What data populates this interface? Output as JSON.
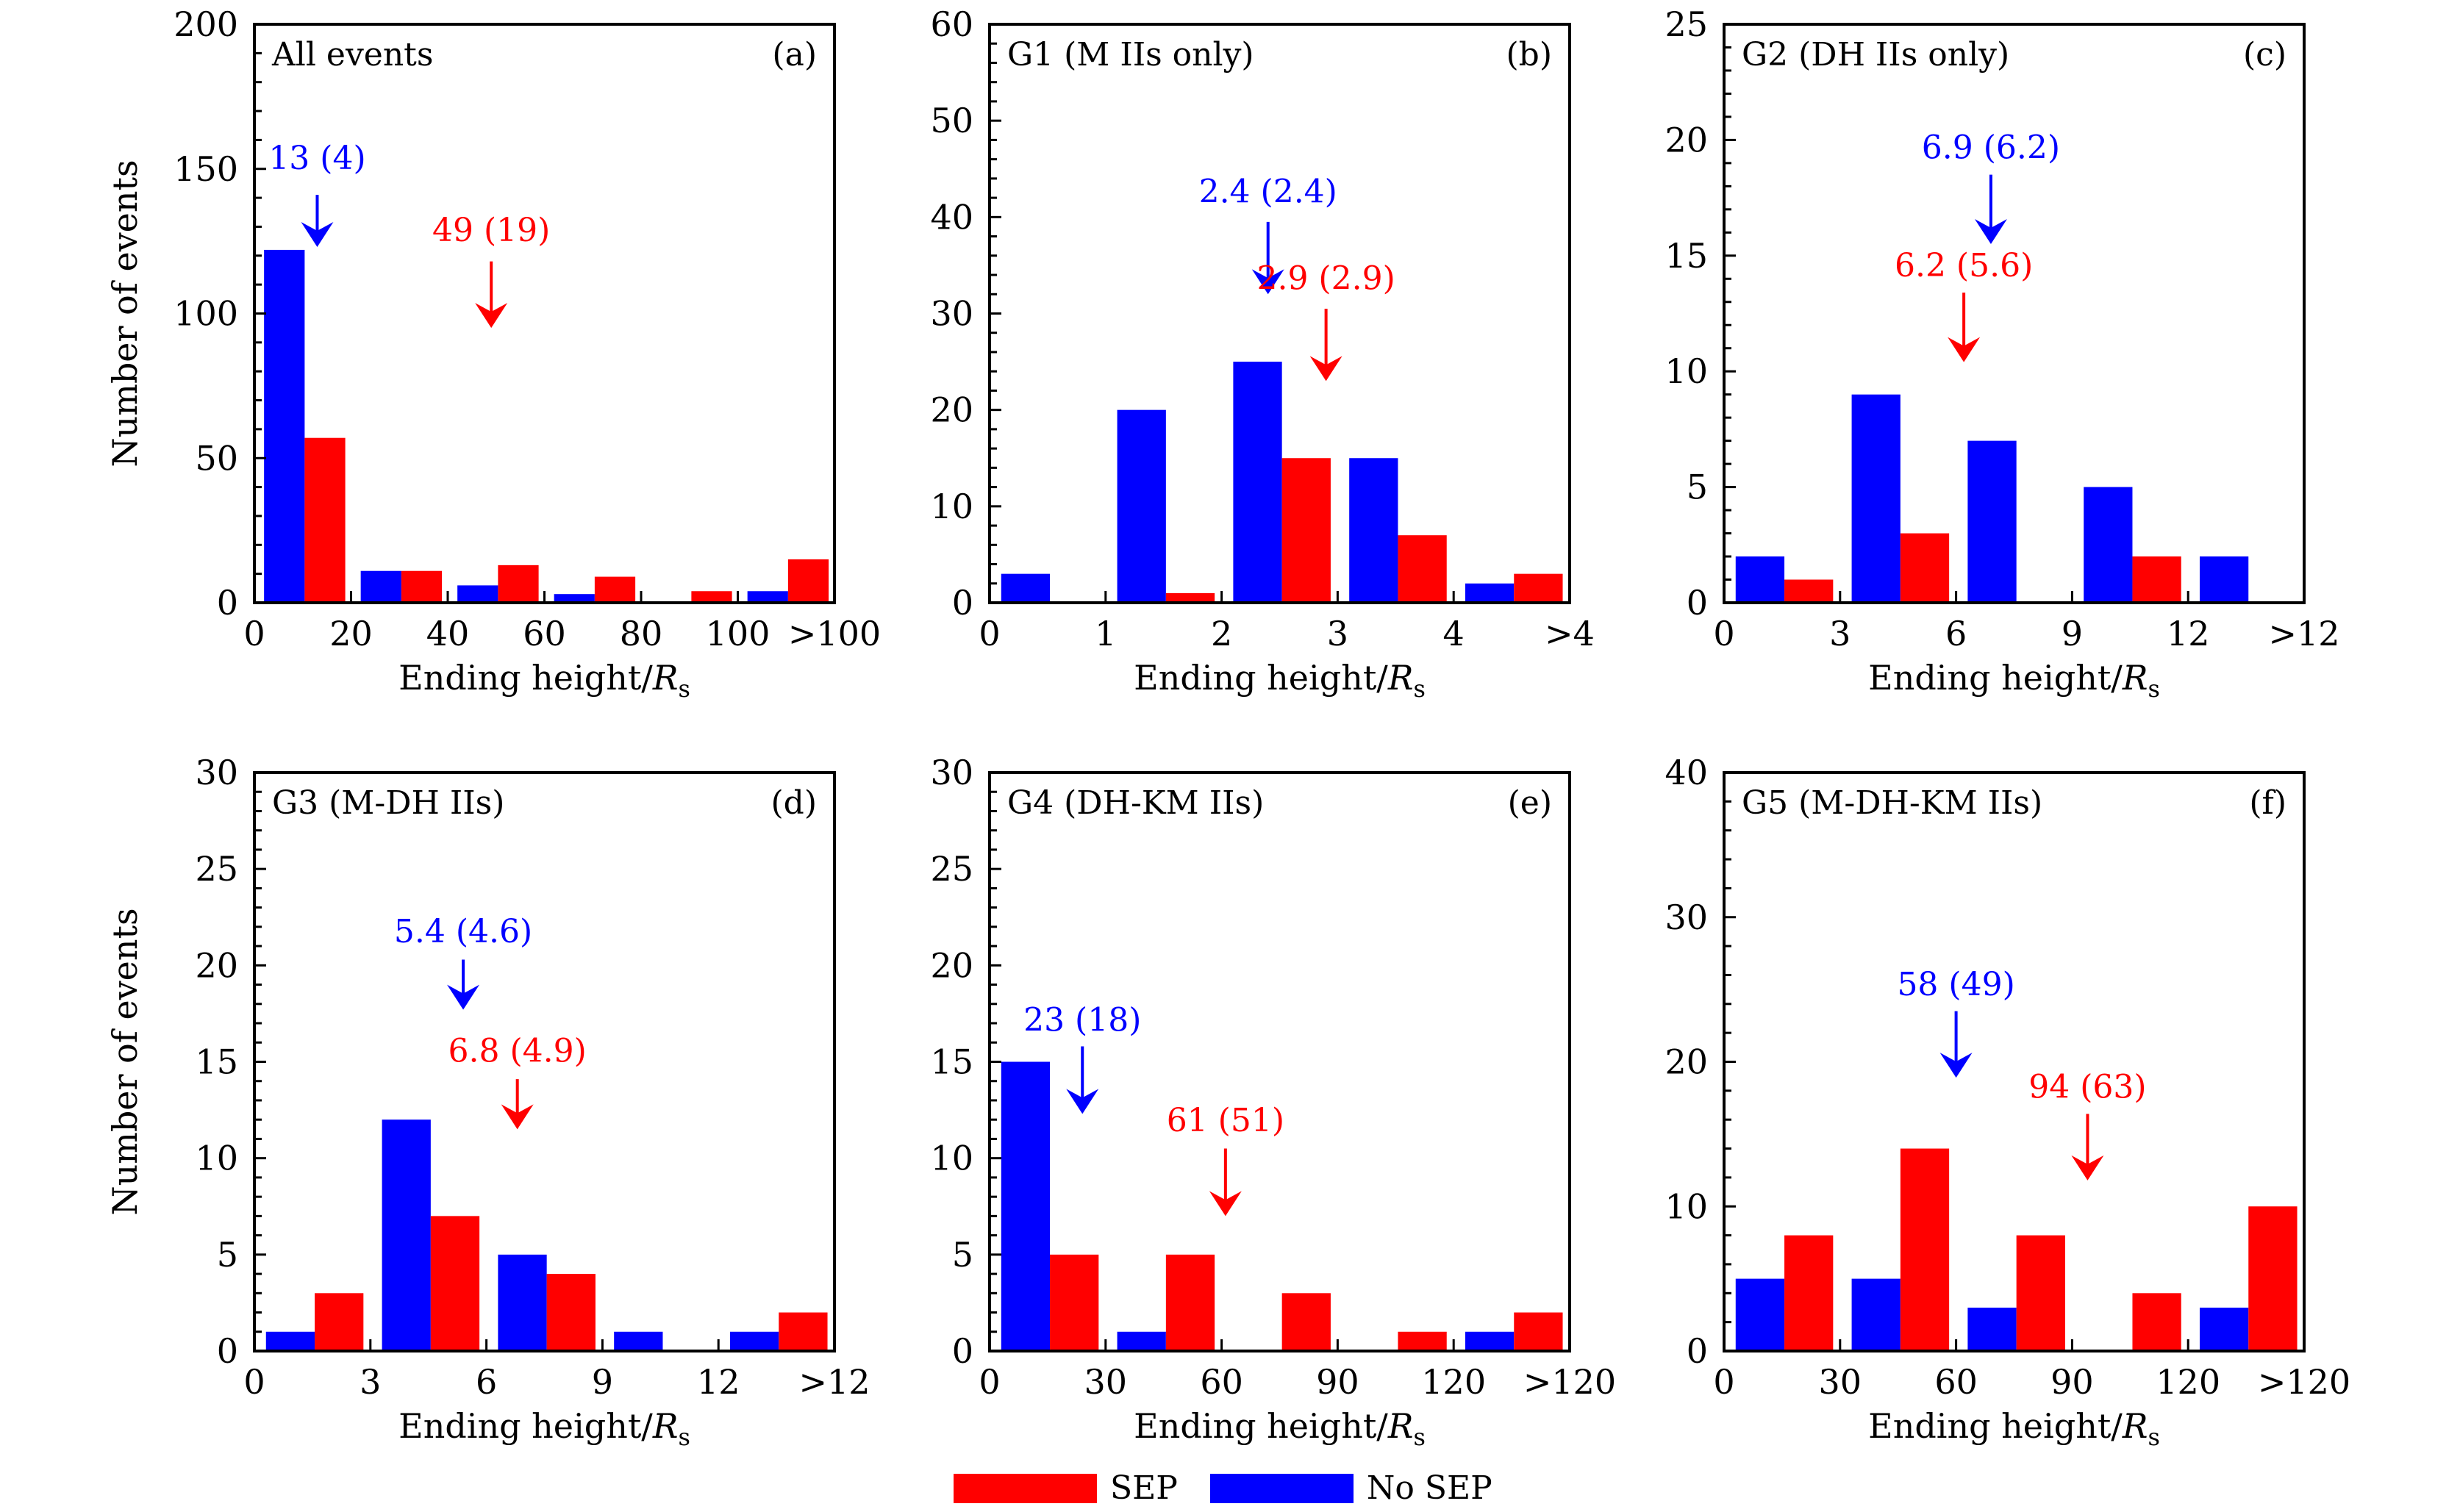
{
  "colors": {
    "sep": "#ff0000",
    "no_sep": "#0000ff",
    "axis": "#000000"
  },
  "legend": [
    {
      "label": "SEP",
      "color_key": "sep"
    },
    {
      "label": "No SEP",
      "color_key": "no_sep"
    }
  ],
  "chart_data": [
    {
      "type": "bar",
      "panel": "(a)",
      "title": "All events",
      "xlabel": "Ending height/Rs",
      "ylabel": "Number of events",
      "xlim": [
        0,
        120
      ],
      "ylim": [
        0,
        200
      ],
      "xticks": [
        0,
        20,
        40,
        60,
        80,
        100,
        120
      ],
      "xtick_labels": [
        "0",
        "20",
        "40",
        "60",
        "80",
        "100",
        ">100"
      ],
      "yticks": [
        0,
        50,
        100,
        150,
        200
      ],
      "yminor_step": 10,
      "bin_edges": [
        0,
        20,
        40,
        60,
        80,
        100,
        120
      ],
      "series": [
        {
          "name": "No SEP",
          "color_key": "no_sep",
          "values": [
            122,
            11,
            6,
            3,
            0,
            4
          ]
        },
        {
          "name": "SEP",
          "color_key": "sep",
          "values": [
            57,
            11,
            13,
            9,
            4,
            15
          ]
        }
      ],
      "annotations": [
        {
          "text": "13 (4)",
          "color_key": "no_sep",
          "x": 13,
          "tip_y": 123,
          "top_y": 141,
          "label_y": 150
        },
        {
          "text": "49 (19)",
          "color_key": "sep",
          "x": 49,
          "tip_y": 95,
          "top_y": 118,
          "label_y": 125
        }
      ],
      "show_ylabel": true
    },
    {
      "type": "bar",
      "panel": "(b)",
      "title": "G1 (M IIs only)",
      "xlabel": "Ending height/Rs",
      "ylabel": "",
      "xlim": [
        0,
        5
      ],
      "ylim": [
        0,
        60
      ],
      "xticks": [
        0,
        1,
        2,
        3,
        4,
        5
      ],
      "xtick_labels": [
        "0",
        "1",
        "2",
        "3",
        "4",
        ">4"
      ],
      "yticks": [
        0,
        10,
        20,
        30,
        40,
        50,
        60
      ],
      "yminor_step": 2,
      "bin_edges": [
        0,
        1,
        2,
        3,
        4,
        5
      ],
      "series": [
        {
          "name": "No SEP",
          "color_key": "no_sep",
          "values": [
            3,
            20,
            25,
            15,
            2
          ]
        },
        {
          "name": "SEP",
          "color_key": "sep",
          "values": [
            0,
            1,
            15,
            7,
            3
          ]
        }
      ],
      "annotations": [
        {
          "text": "2.4 (2.4)",
          "color_key": "no_sep",
          "x": 2.4,
          "tip_y": 32,
          "top_y": 39.5,
          "label_y": 41.5
        },
        {
          "text": "2.9 (2.9)",
          "color_key": "sep",
          "x": 2.9,
          "tip_y": 23,
          "top_y": 30.5,
          "label_y": 32.5
        }
      ],
      "show_ylabel": false
    },
    {
      "type": "bar",
      "panel": "(c)",
      "title": "G2 (DH IIs only)",
      "xlabel": "Ending height/Rs",
      "ylabel": "",
      "xlim": [
        0,
        15
      ],
      "ylim": [
        0,
        25
      ],
      "xticks": [
        0,
        3,
        6,
        9,
        12,
        15
      ],
      "xtick_labels": [
        "0",
        "3",
        "6",
        "9",
        "12",
        ">12"
      ],
      "yticks": [
        0,
        5,
        10,
        15,
        20,
        25
      ],
      "yminor_step": 1,
      "bin_edges": [
        0,
        3,
        6,
        9,
        12,
        15
      ],
      "series": [
        {
          "name": "No SEP",
          "color_key": "no_sep",
          "values": [
            2,
            9,
            7,
            5,
            2
          ]
        },
        {
          "name": "SEP",
          "color_key": "sep",
          "values": [
            1,
            3,
            0,
            2,
            0
          ]
        }
      ],
      "annotations": [
        {
          "text": "6.9 (6.2)",
          "color_key": "no_sep",
          "x": 6.9,
          "tip_y": 15.5,
          "top_y": 18.5,
          "label_y": 19.2
        },
        {
          "text": "6.2 (5.6)",
          "color_key": "sep",
          "x": 6.2,
          "tip_y": 10.4,
          "top_y": 13.4,
          "label_y": 14.1
        }
      ],
      "show_ylabel": false
    },
    {
      "type": "bar",
      "panel": "(d)",
      "title": "G3 (M-DH IIs)",
      "xlabel": "Ending height/Rs",
      "ylabel": "Number of events",
      "xlim": [
        0,
        15
      ],
      "ylim": [
        0,
        30
      ],
      "xticks": [
        0,
        3,
        6,
        9,
        12,
        15
      ],
      "xtick_labels": [
        "0",
        "3",
        "6",
        "9",
        "12",
        ">12"
      ],
      "yticks": [
        0,
        5,
        10,
        15,
        20,
        25,
        30
      ],
      "yminor_step": 1,
      "bin_edges": [
        0,
        3,
        6,
        9,
        12,
        15
      ],
      "series": [
        {
          "name": "No SEP",
          "color_key": "no_sep",
          "values": [
            1,
            12,
            5,
            1,
            1
          ]
        },
        {
          "name": "SEP",
          "color_key": "sep",
          "values": [
            3,
            7,
            4,
            0,
            2
          ]
        }
      ],
      "annotations": [
        {
          "text": "5.4 (4.6)",
          "color_key": "no_sep",
          "x": 5.4,
          "tip_y": 17.7,
          "top_y": 20.3,
          "label_y": 21.2
        },
        {
          "text": "6.8 (4.9)",
          "color_key": "sep",
          "x": 6.8,
          "tip_y": 11.5,
          "top_y": 14.1,
          "label_y": 15.0
        }
      ],
      "show_ylabel": true
    },
    {
      "type": "bar",
      "panel": "(e)",
      "title": "G4 (DH-KM IIs)",
      "xlabel": "Ending height/Rs",
      "ylabel": "",
      "xlim": [
        0,
        150
      ],
      "ylim": [
        0,
        30
      ],
      "xticks": [
        0,
        30,
        60,
        90,
        120,
        150
      ],
      "xtick_labels": [
        "0",
        "30",
        "60",
        "90",
        "120",
        ">120"
      ],
      "yticks": [
        0,
        5,
        10,
        15,
        20,
        25,
        30
      ],
      "yminor_step": 1,
      "bin_edges": [
        0,
        30,
        60,
        90,
        120,
        150
      ],
      "series": [
        {
          "name": "No SEP",
          "color_key": "no_sep",
          "values": [
            15,
            1,
            0,
            0,
            1
          ]
        },
        {
          "name": "SEP",
          "color_key": "sep",
          "values": [
            5,
            5,
            3,
            1,
            2
          ]
        }
      ],
      "annotations": [
        {
          "text": "23 (18)",
          "color_key": "no_sep",
          "x": 24,
          "tip_y": 12.3,
          "top_y": 15.8,
          "label_y": 16.6
        },
        {
          "text": "61 (51)",
          "color_key": "sep",
          "x": 61,
          "tip_y": 7.0,
          "top_y": 10.5,
          "label_y": 11.4
        }
      ],
      "show_ylabel": false
    },
    {
      "type": "bar",
      "panel": "(f)",
      "title": "G5 (M-DH-KM IIs)",
      "xlabel": "Ending height/Rs",
      "ylabel": "",
      "xlim": [
        0,
        150
      ],
      "ylim": [
        0,
        40
      ],
      "xticks": [
        0,
        30,
        60,
        90,
        120,
        150
      ],
      "xtick_labels": [
        "0",
        "30",
        "60",
        "90",
        "120",
        ">120"
      ],
      "yticks": [
        0,
        10,
        20,
        30,
        40
      ],
      "yminor_step": 2,
      "bin_edges": [
        0,
        30,
        60,
        90,
        120,
        150
      ],
      "series": [
        {
          "name": "No SEP",
          "color_key": "no_sep",
          "values": [
            5,
            5,
            3,
            0,
            3
          ]
        },
        {
          "name": "SEP",
          "color_key": "sep",
          "values": [
            8,
            14,
            8,
            4,
            10
          ]
        }
      ],
      "annotations": [
        {
          "text": "58 (49)",
          "color_key": "no_sep",
          "x": 60,
          "tip_y": 18.9,
          "top_y": 23.5,
          "label_y": 24.6
        },
        {
          "text": "94 (63)",
          "color_key": "sep",
          "x": 94,
          "tip_y": 11.8,
          "top_y": 16.4,
          "label_y": 17.5
        }
      ],
      "show_ylabel": false
    }
  ]
}
